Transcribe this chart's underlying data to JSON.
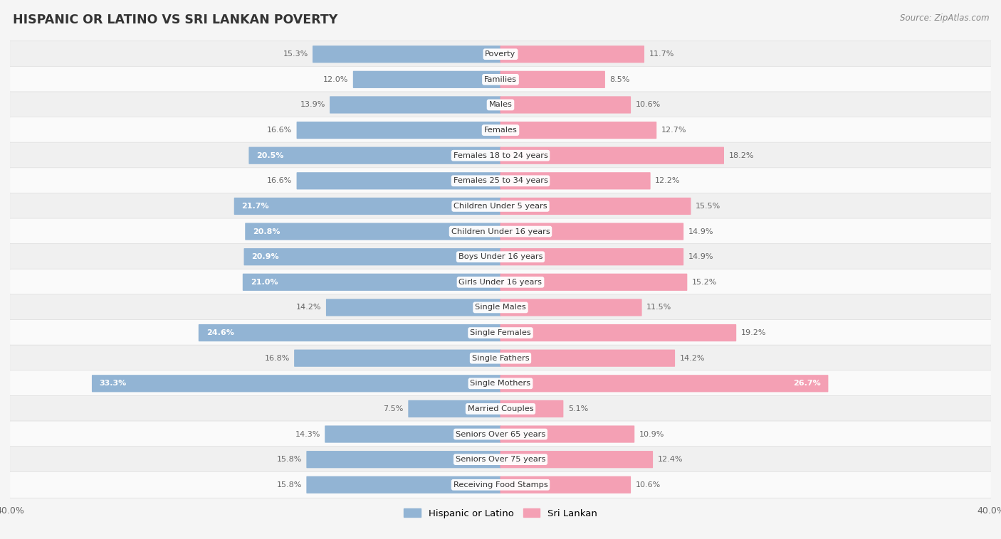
{
  "title": "HISPANIC OR LATINO VS SRI LANKAN POVERTY",
  "source": "Source: ZipAtlas.com",
  "categories": [
    "Poverty",
    "Families",
    "Males",
    "Females",
    "Females 18 to 24 years",
    "Females 25 to 34 years",
    "Children Under 5 years",
    "Children Under 16 years",
    "Boys Under 16 years",
    "Girls Under 16 years",
    "Single Males",
    "Single Females",
    "Single Fathers",
    "Single Mothers",
    "Married Couples",
    "Seniors Over 65 years",
    "Seniors Over 75 years",
    "Receiving Food Stamps"
  ],
  "hispanic_values": [
    15.3,
    12.0,
    13.9,
    16.6,
    20.5,
    16.6,
    21.7,
    20.8,
    20.9,
    21.0,
    14.2,
    24.6,
    16.8,
    33.3,
    7.5,
    14.3,
    15.8,
    15.8
  ],
  "srilankan_values": [
    11.7,
    8.5,
    10.6,
    12.7,
    18.2,
    12.2,
    15.5,
    14.9,
    14.9,
    15.2,
    11.5,
    19.2,
    14.2,
    26.7,
    5.1,
    10.9,
    12.4,
    10.6
  ],
  "hispanic_color": "#92b4d4",
  "srilankan_color": "#f4a0b4",
  "row_color_odd": "#f0f0f0",
  "row_color_even": "#fafafa",
  "background_color": "#f5f5f5",
  "text_color_dark": "#555555",
  "text_color_white": "#ffffff",
  "label_color": "#666666",
  "x_max": 40.0,
  "legend_hispanic": "Hispanic or Latino",
  "legend_srilankan": "Sri Lankan",
  "white_label_threshold": 20.0
}
